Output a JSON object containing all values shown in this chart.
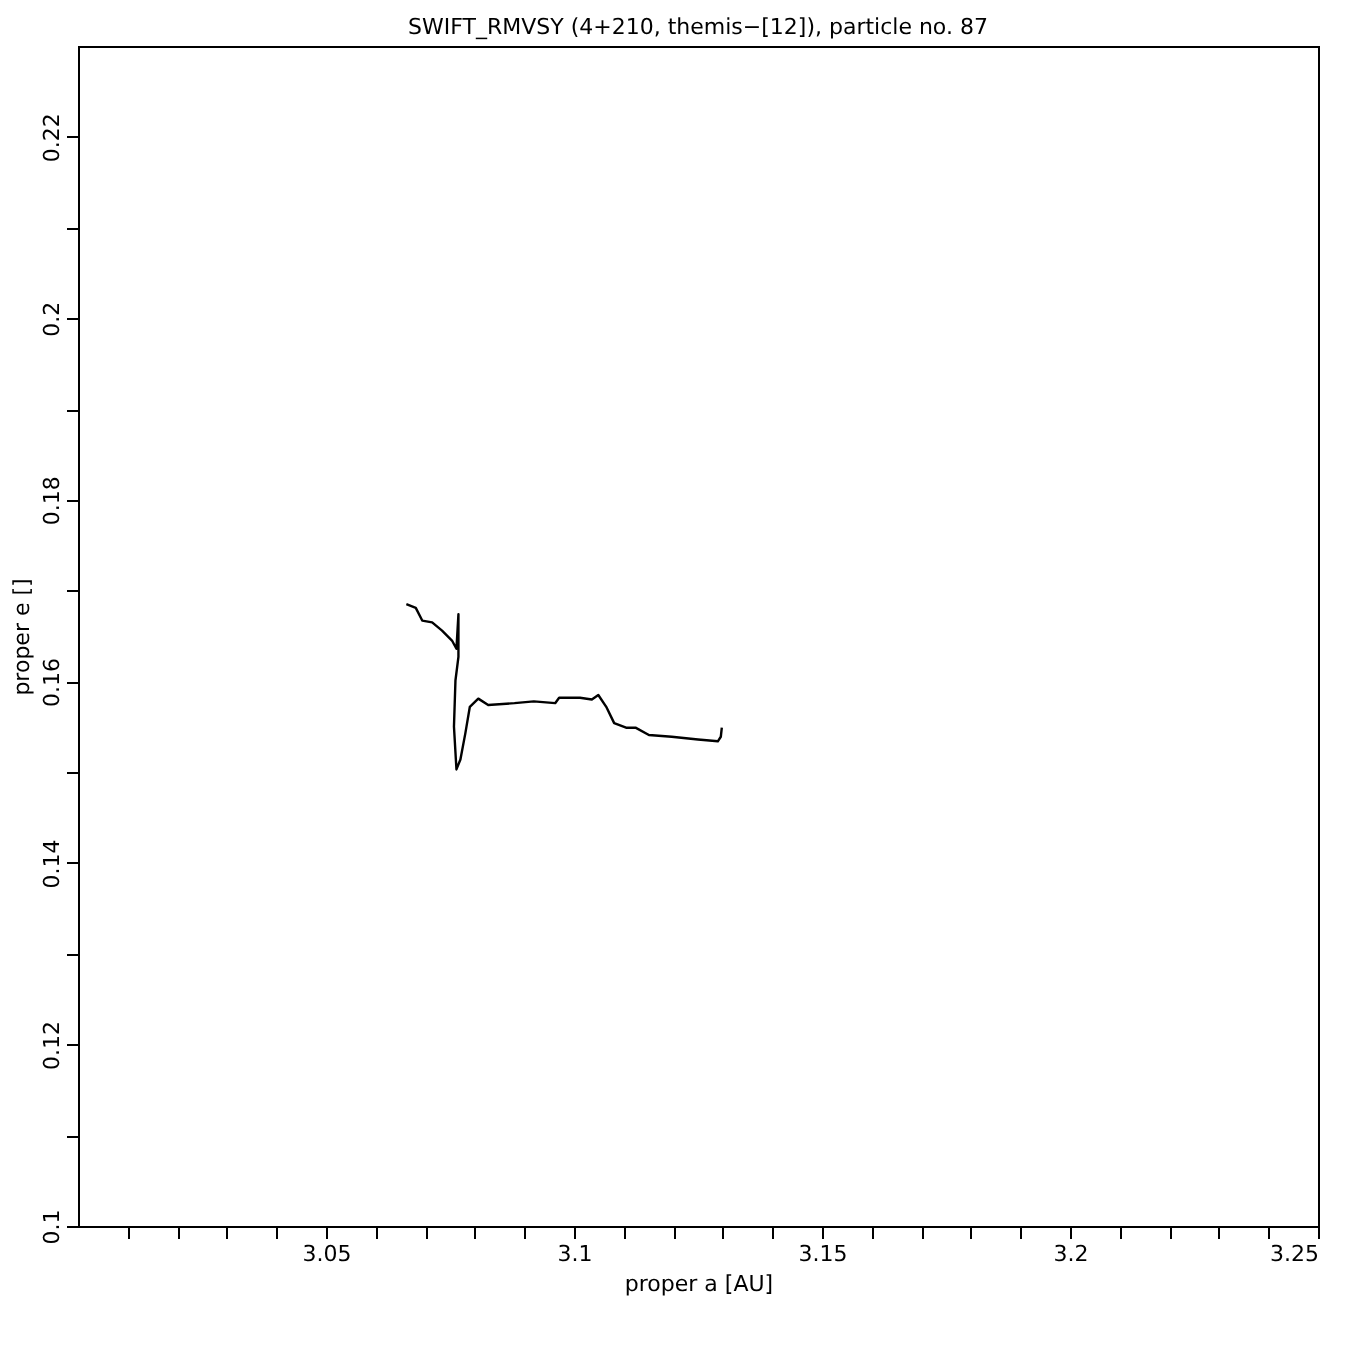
{
  "chart_data": {
    "type": "line",
    "title": "SWIFT_RMVSY (4+210, themis−[12]), particle no. 87",
    "xlabel": "proper a [AU]",
    "ylabel": "proper e []",
    "x": [
      3.0662,
      3.0681,
      3.0694,
      3.0714,
      3.0734,
      3.0754,
      3.0763,
      3.0767,
      3.0767,
      3.0761,
      3.0758,
      3.0763,
      3.0771,
      3.0781,
      3.079,
      3.0807,
      3.0827,
      3.088,
      3.0919,
      3.0962,
      3.097,
      3.1012,
      3.1036,
      3.1049,
      3.1065,
      3.1081,
      3.1105,
      3.1124,
      3.1151,
      3.1197,
      3.125,
      3.129,
      3.1296,
      3.1298
    ],
    "series": [
      {
        "color": "#000000",
        "values": [
          0.1685,
          0.1681,
          0.1667,
          0.1665,
          0.1656,
          0.1645,
          0.1636,
          0.1674,
          0.1627,
          0.1601,
          0.155,
          0.1503,
          0.1514,
          0.1543,
          0.1572,
          0.1581,
          0.1574,
          0.1576,
          0.1578,
          0.1576,
          0.1582,
          0.1582,
          0.158,
          0.1585,
          0.1572,
          0.1554,
          0.1549,
          0.1549,
          0.1541,
          0.1539,
          0.1536,
          0.1534,
          0.1539,
          0.1549
        ]
      }
    ],
    "xlim": [
      3.0,
      3.25
    ],
    "xticks": [
      {
        "value": 3.01,
        "label": null
      },
      {
        "value": 3.02,
        "label": null
      },
      {
        "value": 3.03,
        "label": null
      },
      {
        "value": 3.04,
        "label": null
      },
      3.05,
      {
        "value": 3.06,
        "label": null
      },
      {
        "value": 3.07,
        "label": null
      },
      {
        "value": 3.08,
        "label": null
      },
      {
        "value": 3.09,
        "label": null
      },
      3.1,
      {
        "value": 3.11,
        "label": null
      },
      {
        "value": 3.12,
        "label": null
      },
      {
        "value": 3.13,
        "label": null
      },
      {
        "value": 3.14,
        "label": null
      },
      3.15,
      {
        "value": 3.16,
        "label": null
      },
      {
        "value": 3.17,
        "label": null
      },
      {
        "value": 3.18,
        "label": null
      },
      {
        "value": 3.19,
        "label": null
      },
      3.2,
      {
        "value": 3.21,
        "label": null
      },
      {
        "value": 3.22,
        "label": null
      },
      {
        "value": 3.23,
        "label": null
      },
      {
        "value": 3.24,
        "label": null
      },
      3.25
    ],
    "ylim": [
      0.1,
      0.23
    ],
    "yticks": [
      0.1,
      {
        "value": 0.11,
        "label": null
      },
      0.12,
      {
        "value": 0.13,
        "label": null
      },
      0.14,
      {
        "value": 0.15,
        "label": null
      },
      0.16,
      {
        "value": 0.17,
        "label": null
      },
      0.18,
      {
        "value": 0.19,
        "label": null
      },
      0.2,
      {
        "value": 0.21,
        "label": null
      },
      0.22
    ],
    "grid": false,
    "marker": "none",
    "line_style": "solid"
  }
}
